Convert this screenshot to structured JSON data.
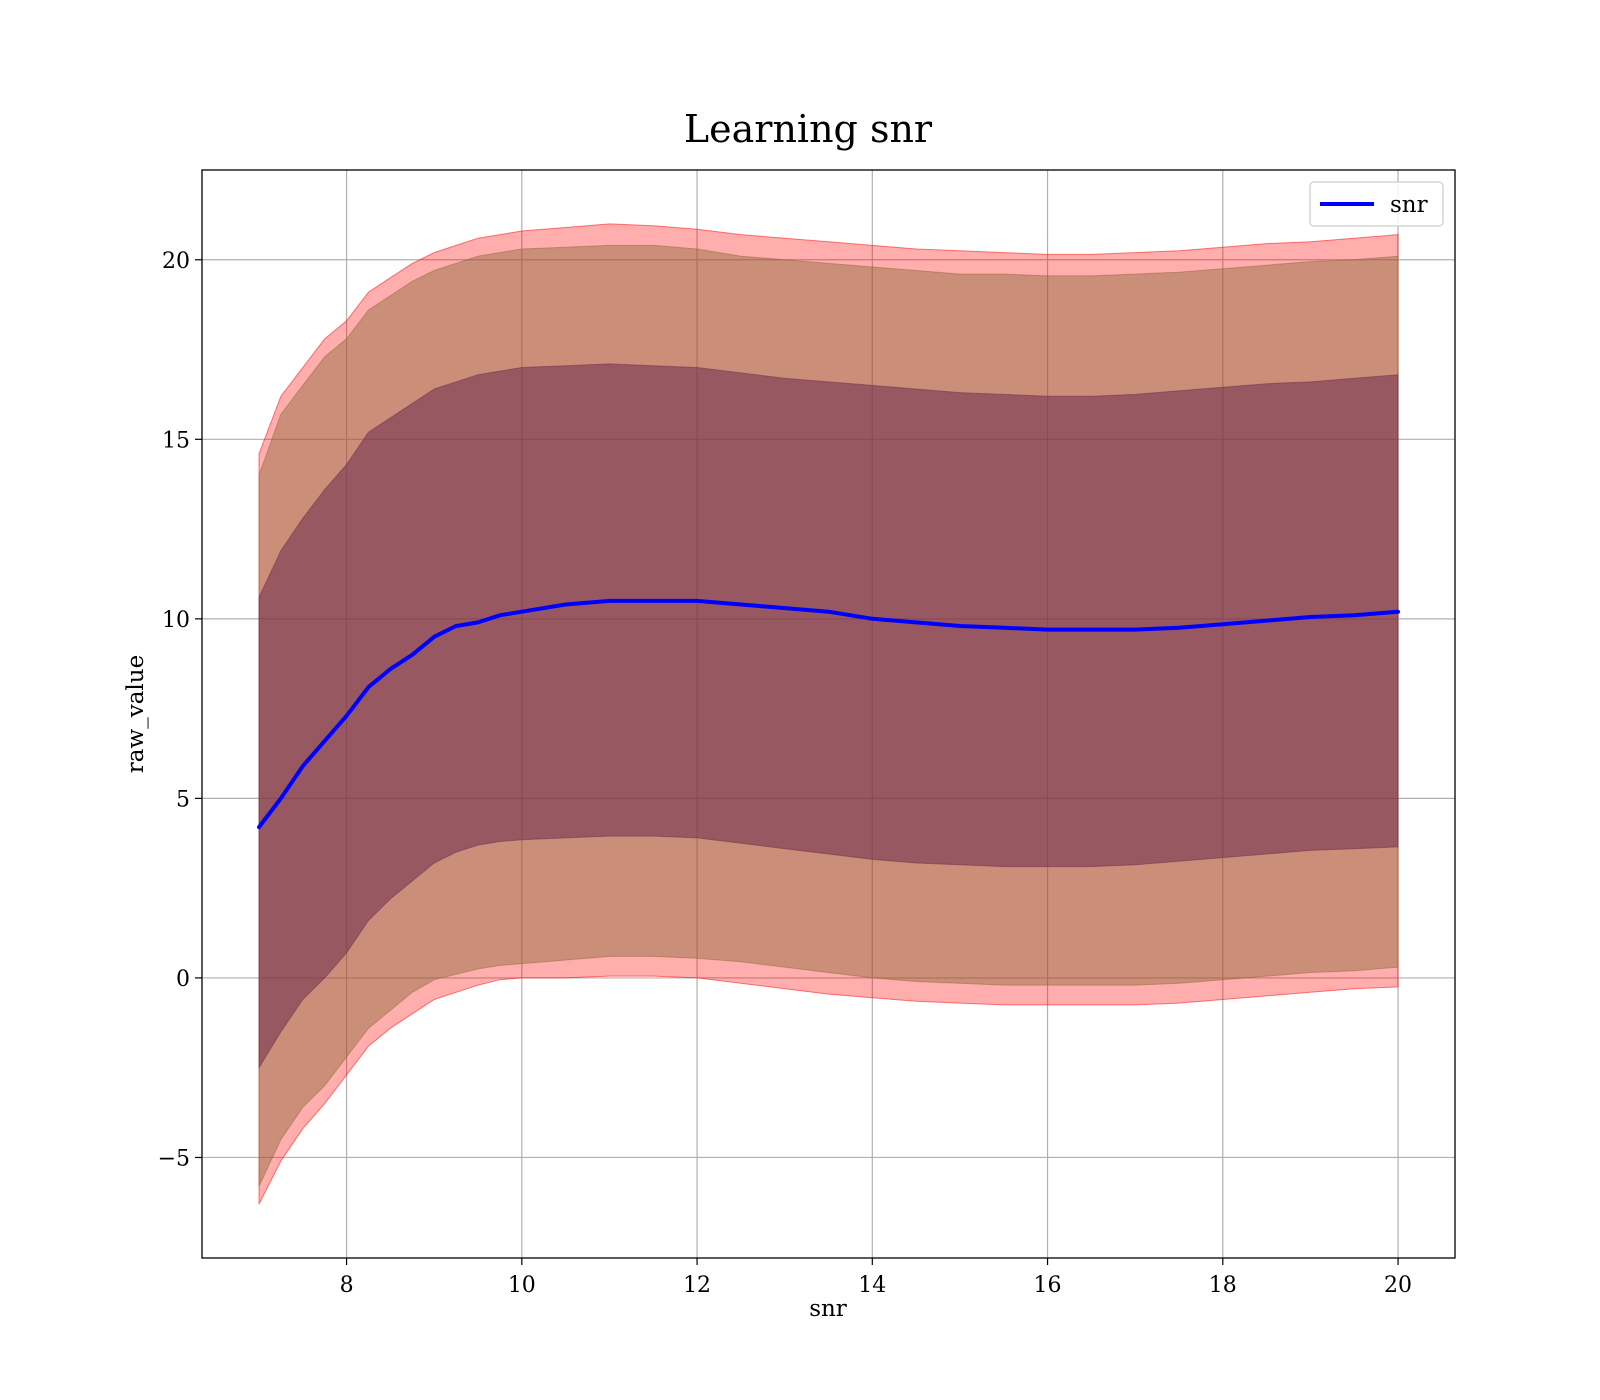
{
  "chart_data": {
    "type": "line",
    "title": "Learning snr",
    "xlabel": "snr",
    "ylabel": "raw_value",
    "xlim": [
      6.35,
      20.65
    ],
    "ylim": [
      -7.8,
      22.5
    ],
    "xticks": [
      8,
      10,
      12,
      14,
      16,
      18,
      20
    ],
    "yticks": [
      -5,
      0,
      5,
      10,
      15,
      20
    ],
    "grid": true,
    "legend": {
      "placement": "top-right",
      "entries": [
        "snr"
      ]
    },
    "colors": {
      "line": "#0000ff",
      "band_outer": "#ff0000",
      "band_mid": "#8b6b3a",
      "band_inner": "#6e2c4e"
    },
    "x": [
      7.0,
      7.25,
      7.5,
      7.75,
      8.0,
      8.25,
      8.5,
      8.75,
      9.0,
      9.25,
      9.5,
      9.75,
      10.0,
      10.5,
      11.0,
      11.5,
      12.0,
      12.5,
      13.0,
      13.5,
      14.0,
      14.5,
      15.0,
      15.5,
      16.0,
      16.5,
      17.0,
      17.5,
      18.0,
      18.5,
      19.0,
      19.5,
      20.0
    ],
    "series": [
      {
        "name": "snr",
        "values": [
          4.2,
          5.0,
          5.9,
          6.6,
          7.3,
          8.1,
          8.6,
          9.0,
          9.5,
          9.8,
          9.9,
          10.1,
          10.2,
          10.4,
          10.5,
          10.5,
          10.5,
          10.4,
          10.3,
          10.2,
          10.0,
          9.9,
          9.8,
          9.75,
          9.7,
          9.7,
          9.7,
          9.75,
          9.85,
          9.95,
          10.05,
          10.1,
          10.2
        ]
      }
    ],
    "bands": [
      {
        "level": "outer",
        "upper": [
          14.6,
          16.2,
          17.0,
          17.8,
          18.3,
          19.1,
          19.5,
          19.9,
          20.2,
          20.4,
          20.6,
          20.7,
          20.8,
          20.9,
          21.0,
          20.95,
          20.85,
          20.7,
          20.6,
          20.5,
          20.4,
          20.3,
          20.25,
          20.2,
          20.15,
          20.15,
          20.2,
          20.25,
          20.35,
          20.45,
          20.5,
          20.6,
          20.7
        ],
        "lower": [
          -6.3,
          -5.1,
          -4.2,
          -3.5,
          -2.7,
          -1.9,
          -1.4,
          -1.0,
          -0.6,
          -0.4,
          -0.2,
          -0.05,
          0.0,
          0.0,
          0.05,
          0.05,
          0.0,
          -0.15,
          -0.3,
          -0.45,
          -0.55,
          -0.65,
          -0.7,
          -0.75,
          -0.75,
          -0.75,
          -0.75,
          -0.7,
          -0.6,
          -0.5,
          -0.4,
          -0.3,
          -0.25
        ]
      },
      {
        "level": "mid",
        "upper": [
          14.0,
          15.7,
          16.5,
          17.3,
          17.8,
          18.6,
          19.0,
          19.4,
          19.7,
          19.9,
          20.1,
          20.2,
          20.3,
          20.35,
          20.4,
          20.4,
          20.3,
          20.1,
          20.0,
          19.9,
          19.8,
          19.7,
          19.6,
          19.6,
          19.55,
          19.55,
          19.6,
          19.65,
          19.75,
          19.85,
          19.95,
          20.0,
          20.1
        ],
        "lower": [
          -5.8,
          -4.5,
          -3.6,
          -3.0,
          -2.2,
          -1.4,
          -0.9,
          -0.4,
          -0.05,
          0.1,
          0.25,
          0.35,
          0.4,
          0.5,
          0.6,
          0.6,
          0.55,
          0.45,
          0.3,
          0.15,
          0.0,
          -0.1,
          -0.15,
          -0.2,
          -0.2,
          -0.2,
          -0.2,
          -0.15,
          -0.05,
          0.05,
          0.15,
          0.2,
          0.3
        ]
      },
      {
        "level": "inner",
        "upper": [
          10.6,
          11.9,
          12.8,
          13.6,
          14.3,
          15.2,
          15.6,
          16.0,
          16.4,
          16.6,
          16.8,
          16.9,
          17.0,
          17.05,
          17.1,
          17.05,
          17.0,
          16.85,
          16.7,
          16.6,
          16.5,
          16.4,
          16.3,
          16.25,
          16.2,
          16.2,
          16.25,
          16.35,
          16.45,
          16.55,
          16.6,
          16.7,
          16.8
        ],
        "lower": [
          -2.5,
          -1.5,
          -0.6,
          0.0,
          0.7,
          1.6,
          2.2,
          2.7,
          3.2,
          3.5,
          3.7,
          3.8,
          3.85,
          3.9,
          3.95,
          3.95,
          3.9,
          3.75,
          3.6,
          3.45,
          3.3,
          3.2,
          3.15,
          3.1,
          3.1,
          3.1,
          3.15,
          3.25,
          3.35,
          3.45,
          3.55,
          3.6,
          3.65
        ]
      }
    ]
  }
}
